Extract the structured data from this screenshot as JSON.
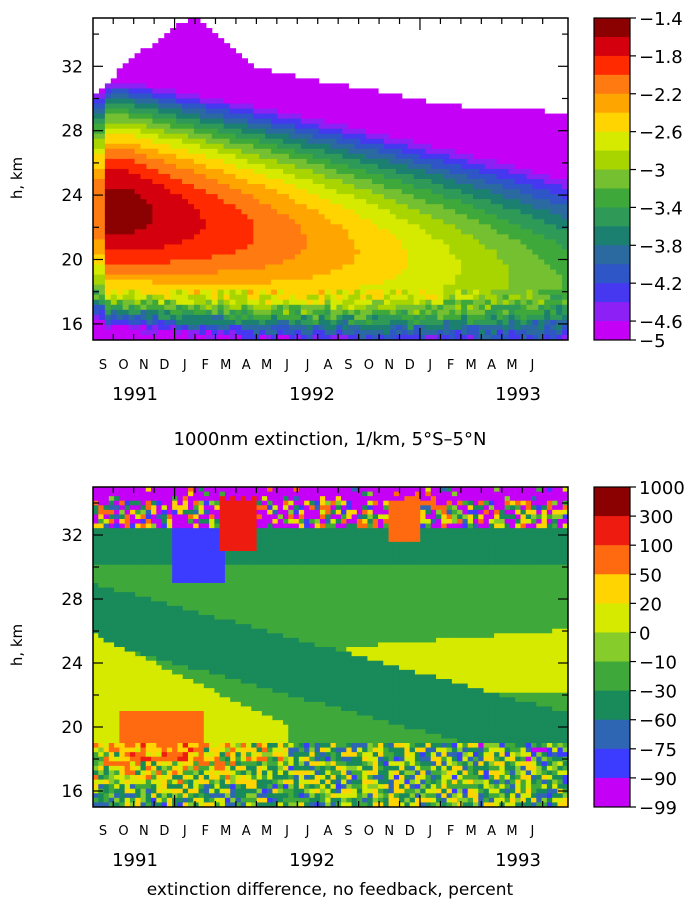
{
  "chart_data": [
    {
      "type": "heatmap",
      "title": "1000nm extinction, 1/km, 5°S–5°N",
      "ylabel": "h, km",
      "xlabel": "",
      "months": [
        "S",
        "O",
        "N",
        "D",
        "J",
        "F",
        "M",
        "A",
        "M",
        "J",
        "J",
        "A",
        "S",
        "O",
        "N",
        "D",
        "J",
        "F",
        "M",
        "A",
        "M",
        "J"
      ],
      "years": [
        "1991",
        "1992",
        "1993"
      ],
      "ylim": [
        15,
        35
      ],
      "yticks": [
        16,
        20,
        24,
        28,
        32
      ],
      "colorbar": {
        "labels": [
          "-1.4",
          "-1.8",
          "-2.2",
          "-2.6",
          "-3",
          "-3.4",
          "-3.8",
          "-4.2",
          "-4.6",
          "-5"
        ],
        "colors": [
          "#8b0000",
          "#d4000e",
          "#ff2a00",
          "#ff7a10",
          "#ffa500",
          "#ffd400",
          "#d6ea00",
          "#a8d400",
          "#74c030",
          "#3fa83a",
          "#2f9a58",
          "#1c8070",
          "#2a6aa0",
          "#2f56c6",
          "#4538f0",
          "#8d20f4",
          "#c400f7"
        ]
      },
      "features": {
        "peak_value": -1.4,
        "peak_altitude_km": 23,
        "peak_time": "Nov 1991",
        "top_of_layer_km": {
          "Sep 1991": 30,
          "Jan 1992": 35,
          "Jul 1992": 31,
          "Jun 1993": 29
        }
      }
    },
    {
      "type": "heatmap",
      "title": "extinction difference, no feedback, percent",
      "ylabel": "h, km",
      "xlabel": "",
      "months": [
        "S",
        "O",
        "N",
        "D",
        "J",
        "F",
        "M",
        "A",
        "M",
        "J",
        "J",
        "A",
        "S",
        "O",
        "N",
        "D",
        "J",
        "F",
        "M",
        "A",
        "M",
        "J"
      ],
      "years": [
        "1991",
        "1992",
        "1993"
      ],
      "ylim": [
        15,
        35
      ],
      "yticks": [
        16,
        20,
        24,
        28,
        32
      ],
      "colorbar": {
        "labels": [
          "1000",
          "300",
          "100",
          "50",
          "20",
          "0",
          "-10",
          "-30",
          "-60",
          "-75",
          "-90",
          "-99"
        ],
        "colors": [
          "#8b0000",
          "#ee1c10",
          "#ff6a10",
          "#ffd400",
          "#d6ea00",
          "#86cc2a",
          "#3fa83a",
          "#198a5a",
          "#2f66b4",
          "#3b3cff",
          "#c400f7"
        ]
      }
    }
  ]
}
